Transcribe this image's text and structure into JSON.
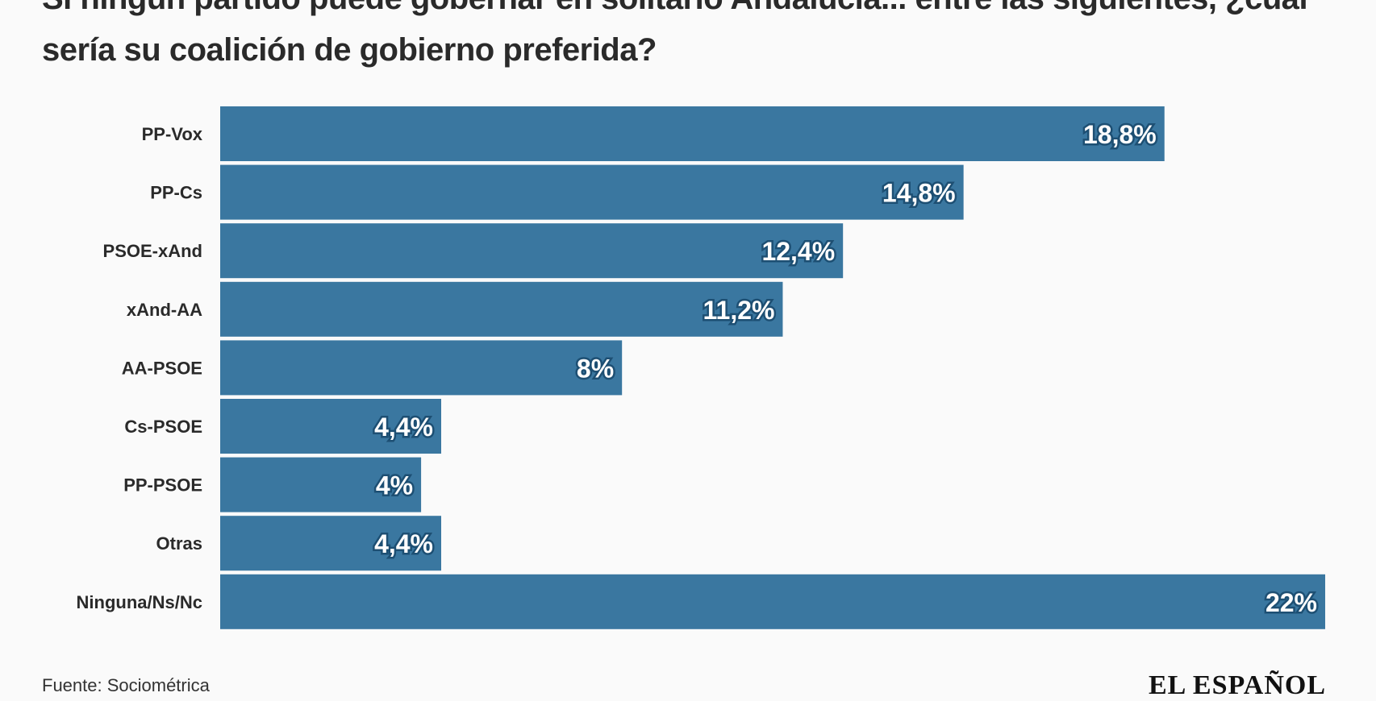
{
  "chart_data": {
    "type": "bar",
    "orientation": "horizontal",
    "title": "Si ningún partido puede gobernar en solitario Andalucía... entre las siguientes, ¿cuál sería su coalición de gobierno preferida?",
    "categories": [
      "PP-Vox",
      "PP-Cs",
      "PSOE-xAnd",
      "xAnd-AA",
      "AA-PSOE",
      "Cs-PSOE",
      "PP-PSOE",
      "Otras",
      "Ninguna/Ns/Nc"
    ],
    "values": [
      18.8,
      14.8,
      12.4,
      11.2,
      8,
      4.4,
      4,
      4.4,
      22
    ],
    "value_labels": [
      "18,8%",
      "14,8%",
      "12,4%",
      "11,2%",
      "8%",
      "4,4%",
      "4%",
      "4,4%",
      "22%"
    ],
    "xlim": [
      0,
      22
    ],
    "xlabel": "",
    "ylabel": "",
    "grid": false,
    "bar_color": "#3a77a0"
  },
  "source": "Fuente: Sociométrica",
  "logo": "EL ESPAÑOL"
}
